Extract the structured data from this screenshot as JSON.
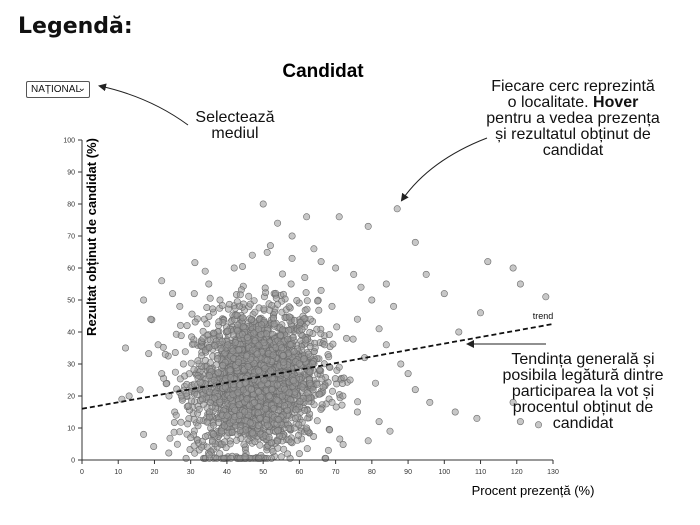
{
  "legend": {
    "title": "Legendă:"
  },
  "selector": {
    "value": "NAȚIONAL"
  },
  "annotations": {
    "select": [
      "Selectează",
      "mediul"
    ],
    "circle": [
      "Fiecare cerc reprezintă",
      "o localitate. ",
      "Hover",
      "pentru a vedea prezența",
      "și rezultatul obținut de",
      "candidat"
    ],
    "trend": [
      "Tendința generală și",
      "posibila legătură dintre",
      "participarea la vot și",
      "procentul obținut de",
      "candidat"
    ]
  },
  "chart_data": {
    "type": "scatter",
    "title": "Candidat",
    "xlabel": "Procent prezență (%)",
    "ylabel": "Rezultat obținut de candidat (%)",
    "xlim": [
      0,
      130
    ],
    "ylim": [
      0,
      100
    ],
    "xticks": [
      0,
      10,
      20,
      30,
      40,
      50,
      60,
      70,
      80,
      90,
      100,
      110,
      120,
      130
    ],
    "yticks": [
      0,
      10,
      20,
      30,
      40,
      50,
      60,
      70,
      80,
      90,
      100
    ],
    "grid": false,
    "point_color": "#999999",
    "trend": {
      "label": "trend",
      "x": [
        0,
        130
      ],
      "y": [
        16,
        42.5
      ]
    },
    "cluster": {
      "center_x": 48,
      "center_y": 25,
      "approx_count": 2500
    },
    "points": [
      [
        50,
        80
      ],
      [
        87,
        78.5
      ],
      [
        62,
        76
      ],
      [
        54,
        74
      ],
      [
        71,
        76
      ],
      [
        79,
        73
      ],
      [
        92,
        68
      ],
      [
        112,
        62
      ],
      [
        119,
        60
      ],
      [
        128,
        51
      ],
      [
        121,
        55
      ],
      [
        100,
        52
      ],
      [
        95,
        58
      ],
      [
        110,
        46
      ],
      [
        104,
        40
      ],
      [
        92,
        22
      ],
      [
        96,
        18
      ],
      [
        103,
        15
      ],
      [
        109,
        13
      ],
      [
        119,
        18
      ],
      [
        121,
        12
      ],
      [
        126,
        11
      ],
      [
        12,
        35
      ],
      [
        17,
        50
      ],
      [
        19,
        44
      ],
      [
        21,
        36
      ],
      [
        22,
        56
      ],
      [
        11,
        19
      ],
      [
        13,
        20
      ],
      [
        17,
        8
      ],
      [
        25,
        52
      ],
      [
        27,
        48
      ],
      [
        34,
        59
      ],
      [
        29,
        42
      ],
      [
        28,
        30
      ],
      [
        36,
        6
      ],
      [
        40,
        14
      ],
      [
        58,
        63
      ],
      [
        66,
        62
      ],
      [
        70,
        60
      ],
      [
        75,
        58
      ],
      [
        77,
        54
      ],
      [
        80,
        50
      ],
      [
        84,
        55
      ],
      [
        86,
        48
      ],
      [
        76,
        44
      ],
      [
        82,
        41
      ],
      [
        73,
        38
      ],
      [
        84,
        36
      ],
      [
        88,
        30
      ],
      [
        90,
        27
      ],
      [
        78,
        32
      ],
      [
        81,
        24
      ],
      [
        72,
        20
      ],
      [
        76,
        15
      ],
      [
        82,
        12
      ],
      [
        85,
        9
      ],
      [
        79,
        6
      ],
      [
        68,
        3
      ],
      [
        60,
        2
      ],
      [
        55,
        1
      ],
      [
        45,
        1
      ],
      [
        38,
        2
      ],
      [
        33,
        4
      ],
      [
        30,
        7
      ],
      [
        26,
        14
      ],
      [
        24,
        20
      ],
      [
        22,
        27
      ],
      [
        23,
        33
      ],
      [
        31,
        52
      ],
      [
        35,
        55
      ],
      [
        42,
        60
      ],
      [
        47,
        64
      ],
      [
        52,
        67
      ],
      [
        58,
        70
      ],
      [
        64,
        66
      ],
      [
        66,
        53
      ],
      [
        69,
        48
      ],
      [
        63,
        44
      ],
      [
        67,
        36
      ],
      [
        71,
        29
      ],
      [
        74,
        25
      ],
      [
        69,
        18
      ],
      [
        62,
        10
      ]
    ]
  }
}
